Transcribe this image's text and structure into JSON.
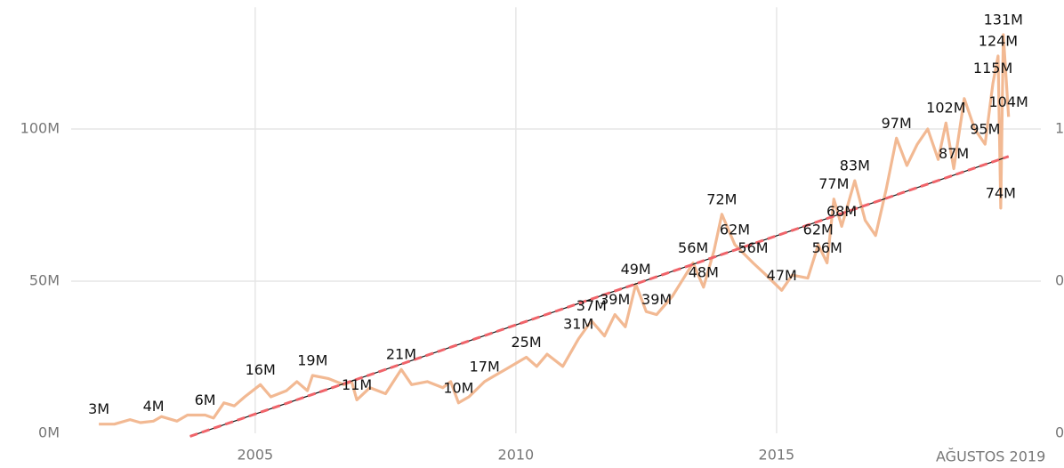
{
  "chart_data": {
    "type": "line",
    "x": [
      2002.0,
      2002.3,
      2002.6,
      2002.8,
      2003.05,
      2003.2,
      2003.5,
      2003.7,
      2004.04,
      2004.2,
      2004.4,
      2004.6,
      2004.8,
      2005.1,
      2005.3,
      2005.6,
      2005.8,
      2006.0,
      2006.1,
      2006.4,
      2006.7,
      2006.85,
      2006.95,
      2007.2,
      2007.5,
      2007.8,
      2008.0,
      2008.3,
      2008.6,
      2008.75,
      2008.9,
      2009.1,
      2009.4,
      2009.6,
      2009.8,
      2010.2,
      2010.4,
      2010.6,
      2010.9,
      2011.2,
      2011.45,
      2011.7,
      2011.9,
      2012.1,
      2012.3,
      2012.5,
      2012.7,
      2013.0,
      2013.4,
      2013.6,
      2013.8,
      2013.95,
      2014.2,
      2014.55,
      2014.8,
      2015.1,
      2015.3,
      2015.6,
      2015.8,
      2015.97,
      2016.1,
      2016.25,
      2016.5,
      2016.7,
      2016.9,
      2017.1,
      2017.3,
      2017.5,
      2017.7,
      2017.9,
      2018.1,
      2018.25,
      2018.4,
      2018.6,
      2018.8,
      2019.0,
      2019.15,
      2019.25,
      2019.3,
      2019.35,
      2019.45
    ],
    "values": [
      3,
      3,
      4.5,
      3.5,
      4,
      5.5,
      4,
      6,
      6,
      5,
      10,
      9,
      12,
      16,
      12,
      14,
      17,
      14,
      19,
      18,
      16,
      17,
      11,
      15,
      13,
      21,
      16,
      17,
      15,
      17,
      10,
      12,
      17,
      19,
      21,
      25,
      22,
      26,
      22,
      31,
      37,
      32,
      39,
      35,
      49,
      40,
      39,
      45,
      56,
      48,
      60,
      72,
      62,
      56,
      52,
      47,
      52,
      51,
      62,
      56,
      77,
      68,
      83,
      70,
      65,
      80,
      97,
      88,
      95,
      100,
      90,
      102,
      87,
      110,
      100,
      95,
      115,
      124,
      74,
      131,
      104
    ],
    "value_labels": [
      "3M",
      null,
      null,
      null,
      "4M",
      null,
      null,
      null,
      "6M",
      null,
      null,
      null,
      null,
      "16M",
      null,
      null,
      null,
      null,
      "19M",
      null,
      null,
      null,
      "11M",
      null,
      null,
      "21M",
      null,
      null,
      null,
      null,
      "10M",
      null,
      "17M",
      null,
      null,
      "25M",
      null,
      null,
      null,
      "31M",
      "37M",
      null,
      "39M",
      null,
      "49M",
      null,
      "39M",
      null,
      "56M",
      "48M",
      null,
      "72M",
      "62M",
      "56M",
      null,
      "47M",
      null,
      null,
      "62M",
      "56M",
      "77M",
      "68M",
      "83M",
      null,
      null,
      null,
      "97M",
      null,
      null,
      null,
      null,
      "102M",
      "87M",
      null,
      null,
      "95M",
      "115M",
      "124M",
      "74M",
      "131M",
      "104M"
    ],
    "color": "#f2b993",
    "trend": {
      "x": [
        2003.75,
        2019.45
      ],
      "values": [
        -1,
        91
      ],
      "color": "#f0646a"
    },
    "xlim": [
      2001.47,
      2020.07
    ],
    "xticks": [
      2005,
      2010,
      2015
    ],
    "ylim": [
      0,
      140
    ],
    "yticks": [
      {
        "value": 0,
        "label": "0M"
      },
      {
        "value": 50,
        "label": "50M"
      },
      {
        "value": 100,
        "label": "100M"
      }
    ],
    "y2lim": [
      0,
      1.4
    ],
    "y2ticks": [
      {
        "value": 0,
        "label": "0"
      },
      {
        "value": 0.5,
        "label": "0"
      },
      {
        "value": 1,
        "label": "1"
      }
    ],
    "annotation": "AĞUSTOS 2019",
    "grid": true
  }
}
